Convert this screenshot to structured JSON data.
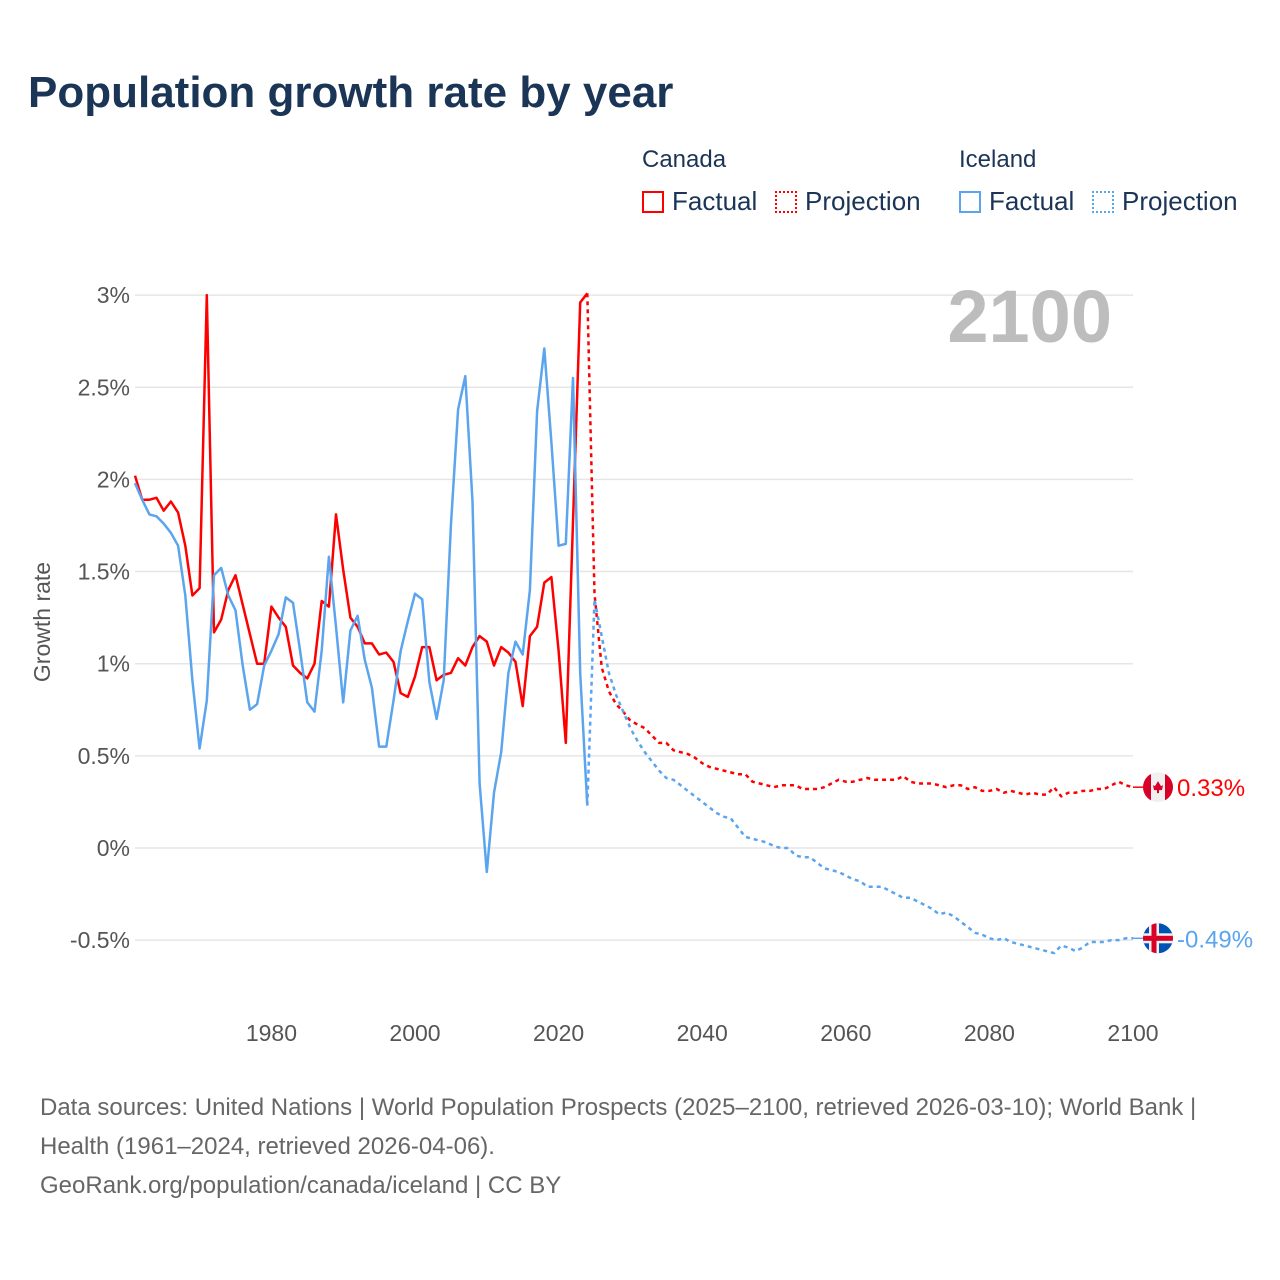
{
  "title": "Population growth rate by year",
  "legend": {
    "groups": [
      {
        "name": "Canada",
        "factual": "Factual",
        "projection": "Projection",
        "color": "#ff0000"
      },
      {
        "name": "Iceland",
        "factual": "Factual",
        "projection": "Projection",
        "color": "#5ba4ee"
      }
    ]
  },
  "year_display": "2100",
  "footer": {
    "sources": "Data sources: United Nations | World Population Prospects (2025–2100, retrieved 2026-03-10); World Bank | Health (1961–2024, retrieved 2026-04-06).",
    "credit": "GeoRank.org/population/canada/iceland | CC BY"
  },
  "chart_data": {
    "type": "line",
    "title": "Population growth rate by year",
    "xlabel": "",
    "ylabel": "Growth rate",
    "xlim": [
      1961,
      2100
    ],
    "ylim": [
      -0.7,
      3.1
    ],
    "x_ticks": [
      1980,
      2000,
      2020,
      2040,
      2060,
      2080,
      2100
    ],
    "y_ticks": [
      {
        "value": 3,
        "label": "3%"
      },
      {
        "value": 2.5,
        "label": "2.5%"
      },
      {
        "value": 2,
        "label": "2%"
      },
      {
        "value": 1.5,
        "label": "1.5%"
      },
      {
        "value": 1,
        "label": "1%"
      },
      {
        "value": 0.5,
        "label": "0.5%"
      },
      {
        "value": 0,
        "label": "0%"
      },
      {
        "value": -0.5,
        "label": "-0.5%"
      }
    ],
    "grid": true,
    "legend_position": "top-right",
    "series": [
      {
        "name": "Canada Factual",
        "country": "Canada",
        "kind": "factual",
        "color": "#ff0000",
        "start": 1961,
        "values": [
          2.02,
          1.89,
          1.89,
          1.9,
          1.83,
          1.88,
          1.82,
          1.64,
          1.37,
          1.41,
          3.0,
          1.17,
          1.24,
          1.4,
          1.48,
          1.32,
          1.16,
          1.0,
          1.0,
          1.31,
          1.25,
          1.2,
          0.99,
          0.95,
          0.92,
          1.0,
          1.34,
          1.31,
          1.81,
          1.51,
          1.25,
          1.2,
          1.11,
          1.11,
          1.05,
          1.06,
          1.01,
          0.84,
          0.82,
          0.93,
          1.09,
          1.09,
          0.91,
          0.94,
          0.95,
          1.03,
          0.99,
          1.09,
          1.15,
          1.12,
          0.99,
          1.09,
          1.06,
          1.01,
          0.77,
          1.15,
          1.2,
          1.44,
          1.47,
          1.07,
          0.57,
          1.77,
          2.96,
          3.01
        ]
      },
      {
        "name": "Canada Projection",
        "country": "Canada",
        "kind": "projection",
        "color": "#ff0000",
        "start": 2024,
        "values": [
          3.01,
          1.38,
          0.98,
          0.85,
          0.78,
          0.74,
          0.69,
          0.67,
          0.65,
          0.61,
          0.57,
          0.57,
          0.53,
          0.52,
          0.51,
          0.49,
          0.46,
          0.44,
          0.43,
          0.42,
          0.41,
          0.4,
          0.4,
          0.36,
          0.35,
          0.34,
          0.33,
          0.34,
          0.34,
          0.34,
          0.32,
          0.32,
          0.32,
          0.33,
          0.35,
          0.37,
          0.36,
          0.36,
          0.37,
          0.38,
          0.37,
          0.37,
          0.37,
          0.37,
          0.39,
          0.36,
          0.35,
          0.35,
          0.35,
          0.34,
          0.33,
          0.34,
          0.34,
          0.32,
          0.33,
          0.31,
          0.31,
          0.32,
          0.3,
          0.31,
          0.3,
          0.29,
          0.3,
          0.29,
          0.29,
          0.33,
          0.28,
          0.3,
          0.3,
          0.31,
          0.31,
          0.32,
          0.32,
          0.34,
          0.36,
          0.34,
          0.33
        ]
      },
      {
        "name": "Iceland Factual",
        "country": "Iceland",
        "kind": "factual",
        "color": "#5ba4ee",
        "start": 1961,
        "values": [
          1.98,
          1.89,
          1.81,
          1.8,
          1.76,
          1.71,
          1.64,
          1.37,
          0.91,
          0.54,
          0.8,
          1.48,
          1.52,
          1.37,
          1.29,
          0.99,
          0.75,
          0.78,
          0.99,
          1.07,
          1.16,
          1.36,
          1.33,
          1.07,
          0.79,
          0.74,
          1.07,
          1.58,
          1.2,
          0.79,
          1.18,
          1.26,
          1.02,
          0.87,
          0.55,
          0.55,
          0.8,
          1.07,
          1.23,
          1.38,
          1.35,
          0.9,
          0.7,
          0.91,
          1.75,
          2.38,
          2.56,
          1.88,
          0.35,
          -0.13,
          0.3,
          0.52,
          0.95,
          1.12,
          1.05,
          1.4,
          2.37,
          2.71,
          2.2,
          1.64,
          1.65,
          2.55,
          0.95,
          0.23
        ]
      },
      {
        "name": "Iceland Projection",
        "country": "Iceland",
        "kind": "projection",
        "color": "#5ba4ee",
        "start": 2024,
        "values": [
          0.23,
          1.35,
          1.15,
          0.95,
          0.83,
          0.74,
          0.65,
          0.58,
          0.52,
          0.47,
          0.42,
          0.38,
          0.37,
          0.34,
          0.31,
          0.28,
          0.25,
          0.22,
          0.19,
          0.17,
          0.16,
          0.11,
          0.06,
          0.05,
          0.04,
          0.03,
          0.01,
          0.0,
          0.0,
          -0.04,
          -0.05,
          -0.05,
          -0.08,
          -0.11,
          -0.12,
          -0.13,
          -0.15,
          -0.17,
          -0.18,
          -0.21,
          -0.21,
          -0.21,
          -0.23,
          -0.25,
          -0.27,
          -0.27,
          -0.29,
          -0.31,
          -0.33,
          -0.36,
          -0.35,
          -0.37,
          -0.4,
          -0.43,
          -0.46,
          -0.47,
          -0.49,
          -0.5,
          -0.49,
          -0.51,
          -0.52,
          -0.53,
          -0.54,
          -0.55,
          -0.56,
          -0.57,
          -0.53,
          -0.54,
          -0.56,
          -0.54,
          -0.51,
          -0.51,
          -0.51,
          -0.5,
          -0.5,
          -0.49,
          -0.49
        ]
      }
    ],
    "end_labels": [
      {
        "country": "Canada",
        "label": "0.33%",
        "value": 0.33,
        "color": "#ff0000",
        "flag": "canada-flag"
      },
      {
        "country": "Iceland",
        "label": "-0.49%",
        "value": -0.49,
        "color": "#5ba4ee",
        "flag": "iceland-flag"
      }
    ]
  }
}
